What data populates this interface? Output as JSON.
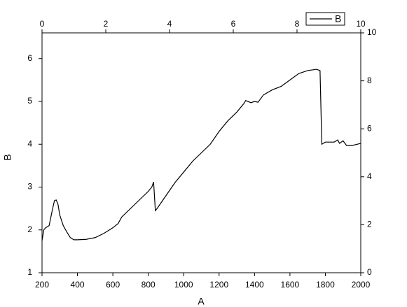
{
  "chart_data": {
    "type": "line",
    "x_label": "A",
    "y_label": "B",
    "series": [
      {
        "name": "B",
        "color": "#000000",
        "x": [
          200,
          210,
          220,
          240,
          260,
          270,
          280,
          290,
          300,
          320,
          340,
          360,
          380,
          400,
          450,
          500,
          550,
          600,
          630,
          650,
          700,
          750,
          800,
          820,
          830,
          840,
          850,
          900,
          950,
          1000,
          1050,
          1100,
          1150,
          1200,
          1250,
          1300,
          1340,
          1350,
          1380,
          1400,
          1420,
          1450,
          1500,
          1550,
          1600,
          1650,
          1700,
          1750,
          1770,
          1780,
          1800,
          1850,
          1870,
          1880,
          1900,
          1920,
          1950,
          2000
        ],
        "values": [
          1.75,
          2.0,
          2.05,
          2.1,
          2.5,
          2.68,
          2.7,
          2.6,
          2.35,
          2.1,
          1.95,
          1.82,
          1.77,
          1.77,
          1.78,
          1.82,
          1.92,
          2.05,
          2.15,
          2.3,
          2.5,
          2.7,
          2.9,
          3.0,
          3.12,
          2.45,
          2.5,
          2.8,
          3.1,
          3.35,
          3.6,
          3.8,
          4.0,
          4.3,
          4.55,
          4.75,
          4.95,
          5.02,
          4.97,
          5.0,
          4.98,
          5.15,
          5.27,
          5.35,
          5.5,
          5.65,
          5.72,
          5.75,
          5.72,
          4.0,
          4.05,
          4.05,
          4.1,
          4.02,
          4.08,
          3.97,
          3.97,
          4.02
        ]
      }
    ],
    "xlim": [
      200,
      2000
    ],
    "xticks": [
      200,
      400,
      600,
      800,
      1000,
      1200,
      1400,
      1600,
      1800,
      2000
    ],
    "ylim": [
      1,
      6.6
    ],
    "yticks": [
      1,
      2,
      3,
      4,
      5,
      6
    ],
    "x2lim": [
      0,
      10
    ],
    "x2ticks": [
      0,
      2,
      4,
      6,
      8,
      10
    ],
    "y2lim": [
      0,
      10
    ],
    "y2ticks": [
      0,
      2,
      4,
      6,
      8,
      10
    ],
    "grid": false,
    "legend": "top-right"
  }
}
